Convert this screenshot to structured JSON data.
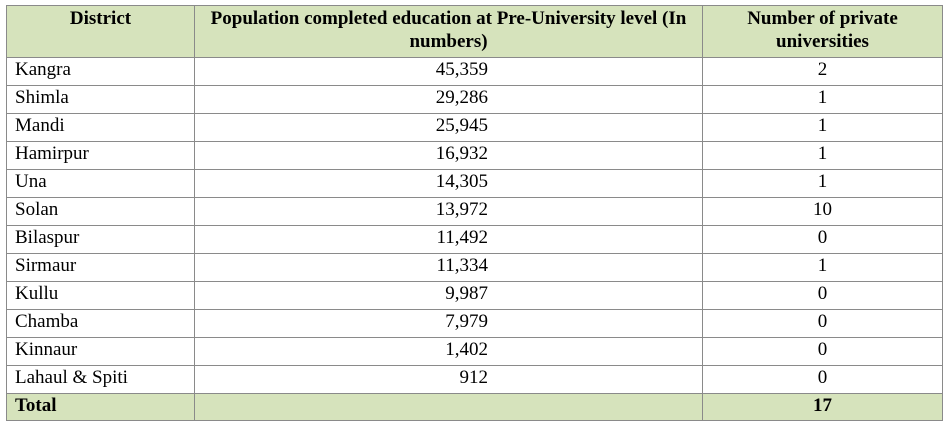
{
  "table": {
    "headers": {
      "district": "District",
      "population": "Population completed education at Pre-University level (In numbers)",
      "universities": "Number of private universities"
    },
    "rows": [
      {
        "district": "Kangra",
        "population": "45,359",
        "universities": "2"
      },
      {
        "district": "Shimla",
        "population": "29,286",
        "universities": "1"
      },
      {
        "district": "Mandi",
        "population": "25,945",
        "universities": "1"
      },
      {
        "district": "Hamirpur",
        "population": "16,932",
        "universities": "1"
      },
      {
        "district": "Una",
        "population": "14,305",
        "universities": "1"
      },
      {
        "district": "Solan",
        "population": "13,972",
        "universities": "10"
      },
      {
        "district": "Bilaspur",
        "population": "11,492",
        "universities": "0"
      },
      {
        "district": "Sirmaur",
        "population": "11,334",
        "universities": "1"
      },
      {
        "district": "Kullu",
        "population": "9,987",
        "universities": "0"
      },
      {
        "district": "Chamba",
        "population": "7,979",
        "universities": "0"
      },
      {
        "district": "Kinnaur",
        "population": "1,402",
        "universities": "0"
      },
      {
        "district": "Lahaul & Spiti",
        "population": "912",
        "universities": "0"
      }
    ],
    "total": {
      "label": "Total",
      "population": "",
      "universities": "17"
    },
    "colors": {
      "header_bg": "#d6e3bc",
      "border": "#8a8a8a"
    }
  }
}
